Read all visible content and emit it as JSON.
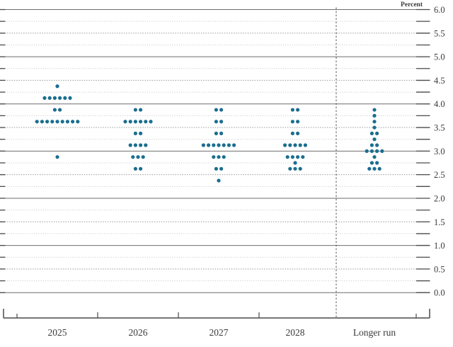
{
  "chart_data": {
    "type": "scatter",
    "chart_kind": "fomc-dot-plot",
    "title": "",
    "xlabel": "",
    "ylabel": "Percent",
    "ylim": [
      0.0,
      6.0
    ],
    "gridline_interval": 0.25,
    "grid": "on",
    "legend_position": "none",
    "y_ticks": [
      {
        "value": 6.0,
        "label": "6.0"
      },
      {
        "value": 5.5,
        "label": "5.5"
      },
      {
        "value": 5.0,
        "label": "5.0"
      },
      {
        "value": 4.5,
        "label": "4.5"
      },
      {
        "value": 4.0,
        "label": "4.0"
      },
      {
        "value": 3.5,
        "label": "3.5"
      },
      {
        "value": 3.0,
        "label": "3.0"
      },
      {
        "value": 2.5,
        "label": "2.5"
      },
      {
        "value": 2.0,
        "label": "2.0"
      },
      {
        "value": 1.5,
        "label": "1.5"
      },
      {
        "value": 1.0,
        "label": "1.0"
      },
      {
        "value": 0.5,
        "label": "0.5"
      },
      {
        "value": 0.0,
        "label": "0.0"
      }
    ],
    "categories": [
      "2025",
      "2026",
      "2027",
      "2028",
      "Longer run"
    ],
    "series": [
      {
        "category": "2025",
        "dots": [
          {
            "rate": 4.375,
            "count": 1
          },
          {
            "rate": 4.125,
            "count": 6
          },
          {
            "rate": 3.875,
            "count": 2
          },
          {
            "rate": 3.625,
            "count": 9
          },
          {
            "rate": 2.875,
            "count": 1
          }
        ]
      },
      {
        "category": "2026",
        "dots": [
          {
            "rate": 3.875,
            "count": 2
          },
          {
            "rate": 3.625,
            "count": 6
          },
          {
            "rate": 3.375,
            "count": 2
          },
          {
            "rate": 3.125,
            "count": 4
          },
          {
            "rate": 2.875,
            "count": 3
          },
          {
            "rate": 2.625,
            "count": 2
          }
        ]
      },
      {
        "category": "2027",
        "dots": [
          {
            "rate": 3.875,
            "count": 2
          },
          {
            "rate": 3.625,
            "count": 2
          },
          {
            "rate": 3.375,
            "count": 2
          },
          {
            "rate": 3.125,
            "count": 7
          },
          {
            "rate": 2.875,
            "count": 3
          },
          {
            "rate": 2.625,
            "count": 2
          },
          {
            "rate": 2.375,
            "count": 1
          }
        ]
      },
      {
        "category": "2028",
        "dots": [
          {
            "rate": 3.875,
            "count": 2
          },
          {
            "rate": 3.625,
            "count": 2
          },
          {
            "rate": 3.375,
            "count": 2
          },
          {
            "rate": 3.125,
            "count": 5
          },
          {
            "rate": 2.875,
            "count": 4
          },
          {
            "rate": 2.75,
            "count": 1
          },
          {
            "rate": 2.625,
            "count": 3
          }
        ]
      },
      {
        "category": "Longer run",
        "dots": [
          {
            "rate": 3.875,
            "count": 1
          },
          {
            "rate": 3.75,
            "count": 1
          },
          {
            "rate": 3.625,
            "count": 1
          },
          {
            "rate": 3.5,
            "count": 1
          },
          {
            "rate": 3.375,
            "count": 2
          },
          {
            "rate": 3.25,
            "count": 1
          },
          {
            "rate": 3.125,
            "count": 2
          },
          {
            "rate": 3.0,
            "count": 4
          },
          {
            "rate": 2.875,
            "count": 1
          },
          {
            "rate": 2.75,
            "count": 2
          },
          {
            "rate": 2.625,
            "count": 3
          }
        ]
      }
    ],
    "colors": {
      "dot": "#1b6e8e",
      "axis": "#4a4a4a",
      "grid_integer": "#6e6e6e",
      "grid_half": "#999999",
      "grid_quarter": "#c4c4c4",
      "edge_tick": "#4a4a4a",
      "separator": "#555555",
      "label": "#3a3a3a"
    }
  }
}
